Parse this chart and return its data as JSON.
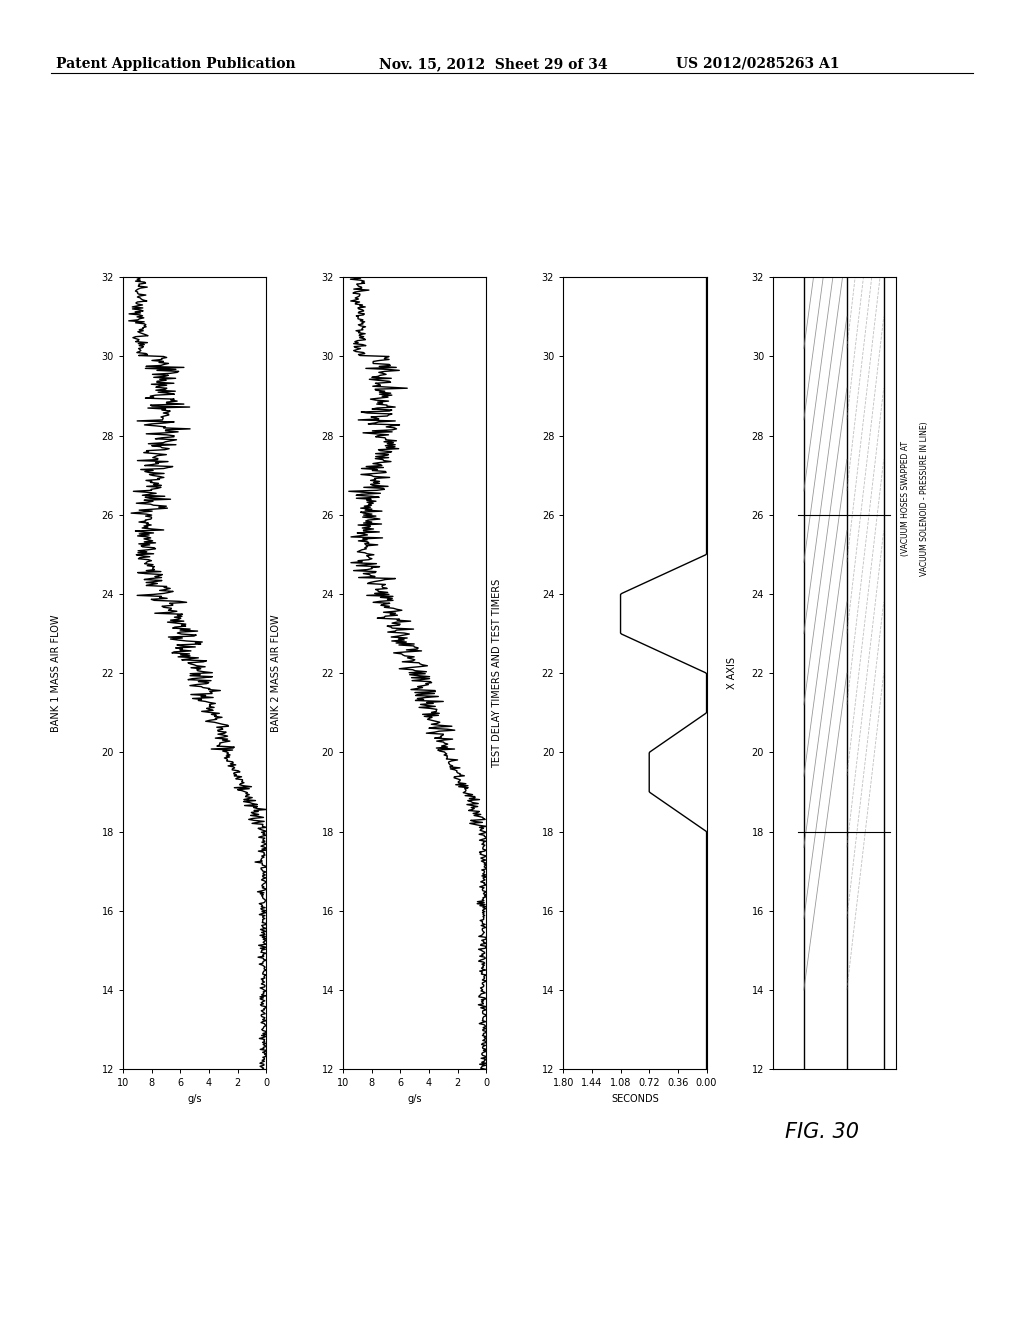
{
  "header_left": "Patent Application Publication",
  "header_mid": "Nov. 15, 2012  Sheet 29 of 34",
  "header_right": "US 2012/0285263 A1",
  "fig_label": "FIG. 30",
  "background_color": "#ffffff",
  "x_range": [
    12,
    32
  ],
  "chart1_ylabel": "g/s",
  "chart1_title": "BANK 1 MASS AIR FLOW",
  "chart1_ylim": [
    0,
    10
  ],
  "chart1_yticks": [
    0,
    2,
    4,
    6,
    8,
    10
  ],
  "chart2_ylabel": "g/s",
  "chart2_title": "BANK 2 MASS AIR FLOW",
  "chart2_ylim": [
    0,
    10
  ],
  "chart2_yticks": [
    0,
    2,
    4,
    6,
    8,
    10
  ],
  "chart3_ylabel": "SECONDS",
  "chart3_title": "TEST DELAY TIMERS AND TEST TIMERS",
  "chart3_ylim": [
    0,
    1.8
  ],
  "chart3_yticks": [
    0,
    0.36,
    0.72,
    1.08,
    1.44,
    1.8
  ],
  "chart4_title": "X AXIS",
  "chart4_annotation_line1": "(VACUUM HOSES SWAPPED AT",
  "chart4_annotation_line2": "VACUUM SOLENOID - PRESSURE IN LINE)",
  "x_ticks": [
    12,
    14,
    16,
    18,
    20,
    22,
    24,
    26,
    28,
    30,
    32
  ],
  "line_color": "#000000",
  "line_width": 1.0,
  "tick_fontsize": 7,
  "label_fontsize": 7,
  "title_fontsize": 7
}
